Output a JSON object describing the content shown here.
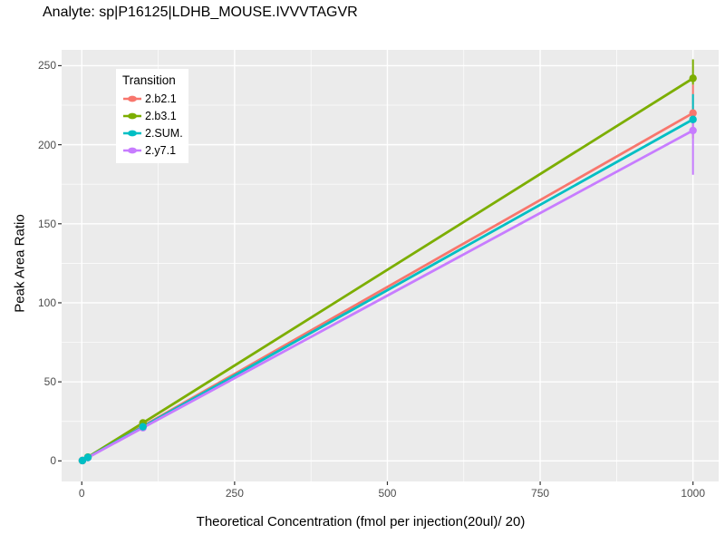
{
  "title": "Analyte: sp|P16125|LDHB_MOUSE.IVVVTAGVR",
  "chart_data": {
    "type": "line",
    "title": "Analyte: sp|P16125|LDHB_MOUSE.IVVVTAGVR",
    "xlabel": "Theoretical Concentration (fmol per injection(20ul)/ 20)",
    "ylabel": "Peak Area Ratio",
    "legend": {
      "title": "Transition",
      "position": "top-left-inside"
    },
    "x_ticks": [
      0,
      250,
      500,
      750,
      1000
    ],
    "y_ticks": [
      0,
      50,
      100,
      150,
      200,
      250
    ],
    "x_minor_ticks": [
      125,
      375,
      625,
      875
    ],
    "y_minor_ticks": [
      25,
      75,
      125,
      175,
      225
    ],
    "xlim": [
      -33,
      1042
    ],
    "ylim": [
      -13,
      260
    ],
    "grid": true,
    "panel_bg": "#EBEBEB",
    "grid_major_color": "#FFFFFF",
    "grid_minor_color": "#FFFFFF",
    "tick_color": "#333333",
    "tick_label_color": "#4d4d4d",
    "series": [
      {
        "name": "2.b2.1",
        "color": "#F8766D",
        "x": [
          1,
          10,
          100,
          1000
        ],
        "y": [
          0.2,
          2.2,
          22,
          220
        ],
        "errorbar": {
          "x": 1000,
          "lo": 204,
          "hi": 238
        }
      },
      {
        "name": "2.b3.1",
        "color": "#7CAE00",
        "x": [
          1,
          10,
          100,
          1000
        ],
        "y": [
          0.2,
          2.4,
          24,
          242
        ],
        "errorbar": {
          "x": 1000,
          "lo": 238,
          "hi": 254
        }
      },
      {
        "name": "2.SUM.",
        "color": "#00BFC4",
        "x": [
          1,
          10,
          100,
          1000
        ],
        "y": [
          0.2,
          2.2,
          21.6,
          216
        ],
        "errorbar": {
          "x": 1000,
          "lo": 214,
          "hi": 232
        }
      },
      {
        "name": "2.y7.1",
        "color": "#C77CFF",
        "x": [
          1,
          10,
          100,
          1000
        ],
        "y": [
          0.2,
          2.1,
          21,
          209
        ],
        "errorbar": {
          "x": 1000,
          "lo": 181,
          "hi": 221
        }
      }
    ]
  }
}
